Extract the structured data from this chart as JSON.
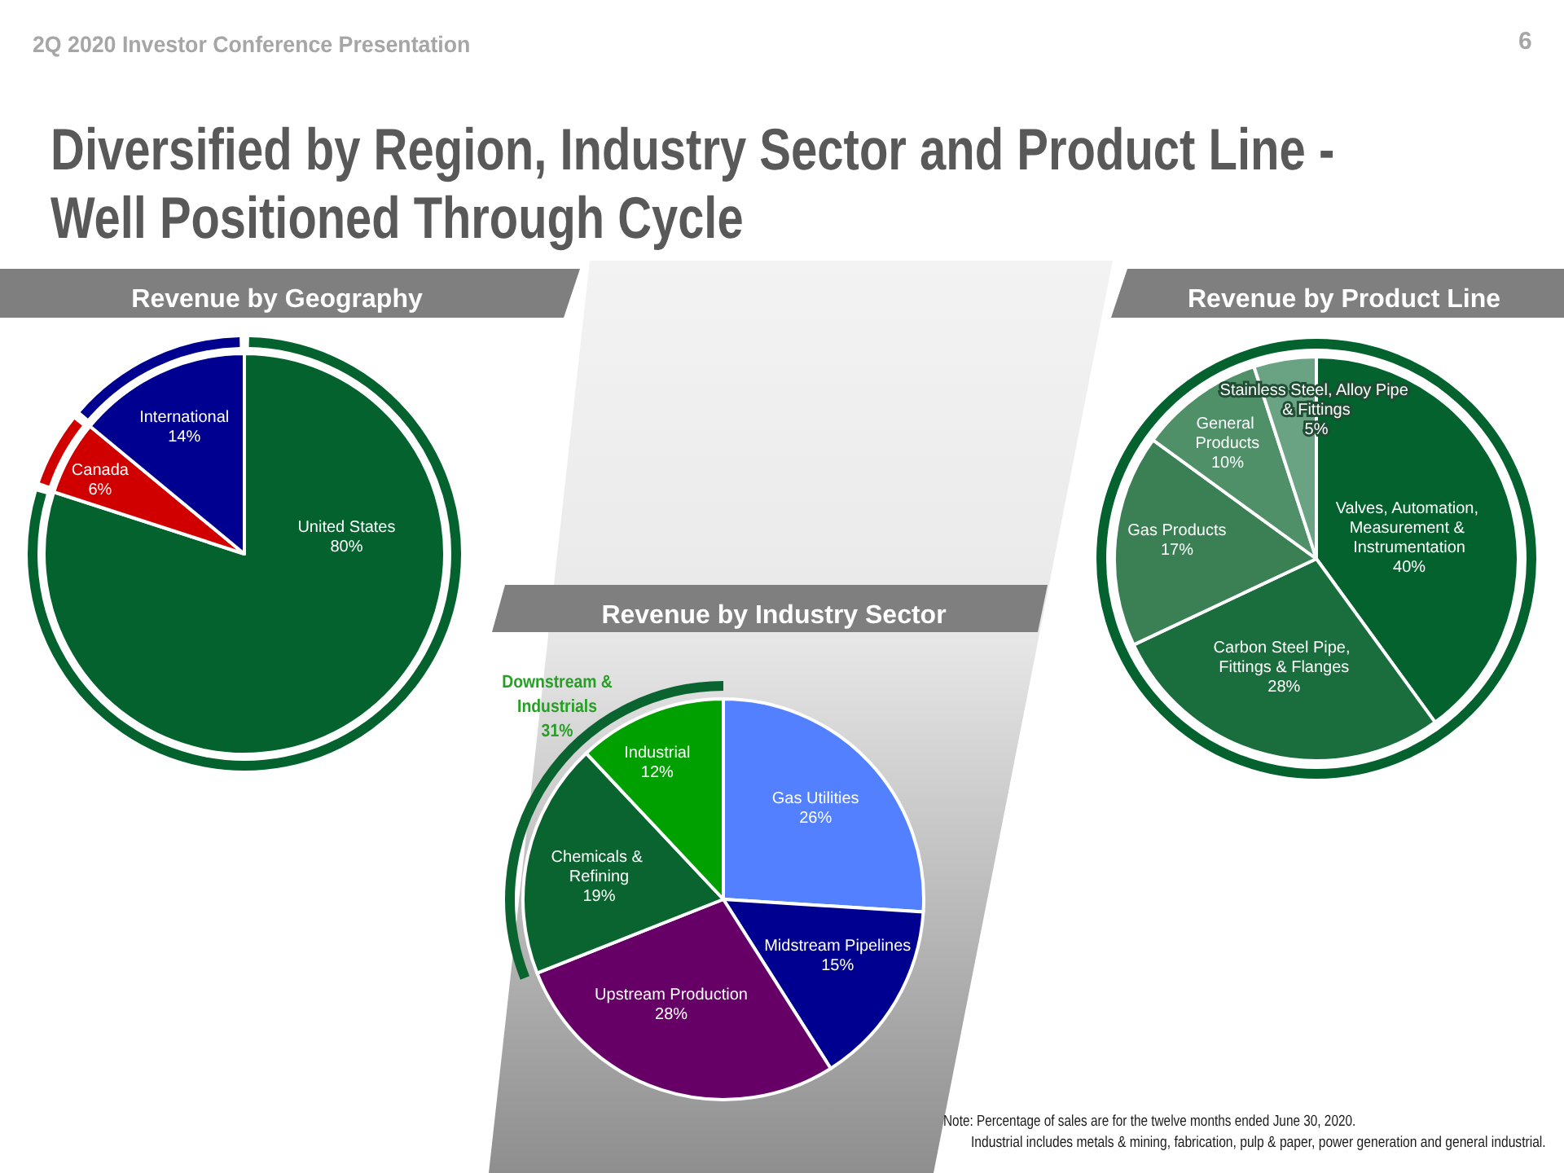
{
  "chart_data": [
    {
      "type": "pie",
      "title": "Revenue by Geography",
      "categories": [
        "United States",
        "Canada",
        "International"
      ],
      "values": [
        80,
        6,
        14
      ],
      "colors": [
        "#03622e",
        "#d00000",
        "#000090"
      ],
      "value_labels": [
        "80%",
        "6%",
        "14%"
      ],
      "annotations": [
        "2Q 2020 Investor Conference Presentation",
        "6",
        "Diversified by Region, Industry Sector and Product Line -",
        "Well Positioned Through Cycle"
      ]
    },
    {
      "type": "pie",
      "title": "Revenue by Industry Sector",
      "categories": [
        "Gas Utilities",
        "Midstream Pipelines",
        "Upstream Production",
        "Chemicals & Refining",
        "Industrial"
      ],
      "values": [
        26,
        15,
        28,
        19,
        12
      ],
      "colors": [
        "#5280ff",
        "#000090",
        "#660066",
        "#0a6430",
        "#00a000"
      ],
      "value_labels": [
        "26%",
        "15%",
        "28%",
        "19%",
        "12%"
      ],
      "annotations": [
        "Downstream & Industrials",
        "31%"
      ]
    },
    {
      "type": "pie",
      "title": "Revenue by Product Line",
      "categories": [
        "Valves, Automation, Measurement & Instrumentation",
        "Carbon Steel Pipe, Fittings & Flanges",
        "Gas Products",
        "General Products",
        "Stainless Steel, Alloy Pipe & Fittings"
      ],
      "values": [
        40,
        28,
        17,
        10,
        5
      ],
      "colors": [
        "#03622e",
        "#1a6d3c",
        "#3a8054",
        "#4f9069",
        "#6aa383"
      ],
      "value_labels": [
        "40%",
        "28%",
        "17%",
        "10%",
        "5%"
      ],
      "annotations": [
        "Note: Percentage of sales are for the twelve months ended June 30, 2020.",
        "Industrial includes metals & mining, fabrication, pulp & paper, power generation and general industrial."
      ]
    }
  ]
}
